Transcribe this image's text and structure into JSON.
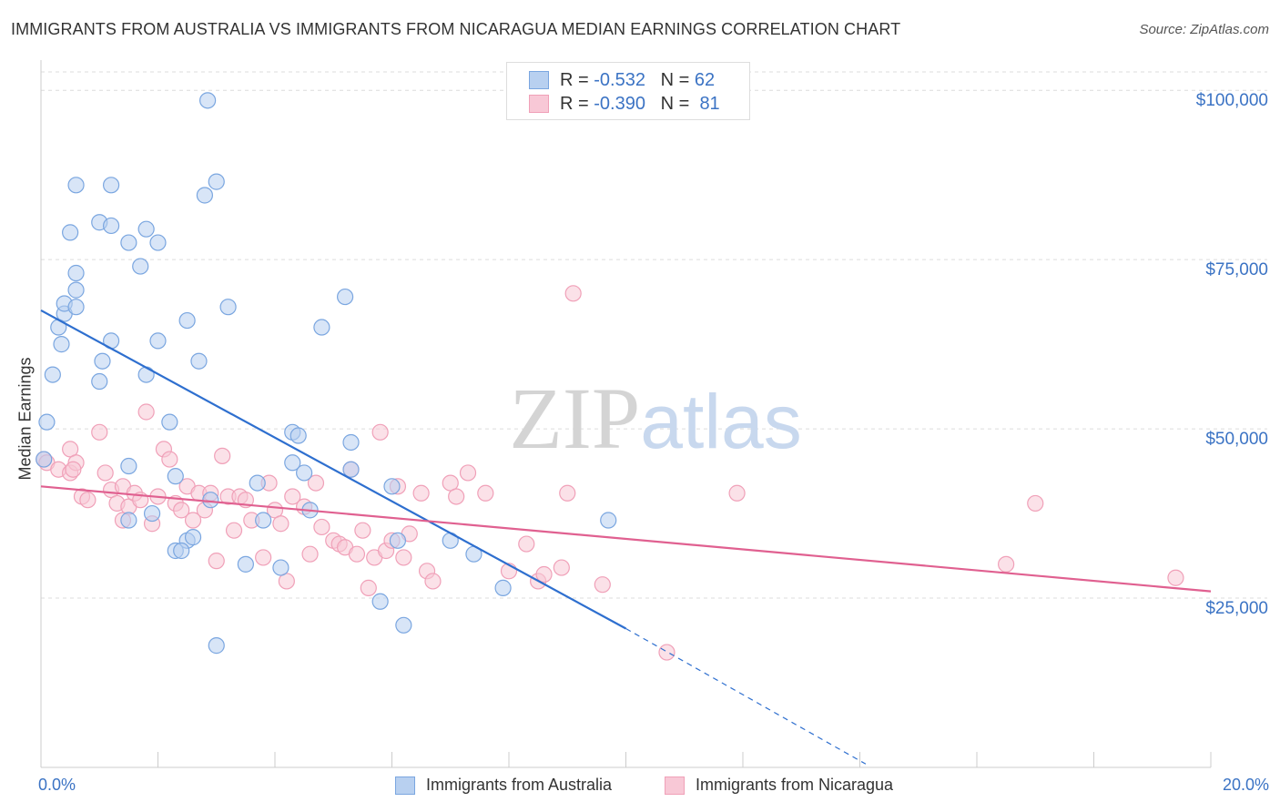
{
  "chart_data": {
    "type": "scatter",
    "title": "IMMIGRANTS FROM AUSTRALIA VS IMMIGRANTS FROM NICARAGUA MEDIAN EARNINGS CORRELATION CHART",
    "source": "Source: ZipAtlas.com",
    "watermark": "ZIPatlas",
    "ylabel": "Median Earnings",
    "xlim": [
      0,
      20
    ],
    "ylim": [
      0,
      105000
    ],
    "x_tick_labels": [
      "0.0%",
      "20.0%"
    ],
    "y_ticks": [
      {
        "value": 25000,
        "label": "$25,000"
      },
      {
        "value": 50000,
        "label": "$50,000"
      },
      {
        "value": 75000,
        "label": "$75,000"
      },
      {
        "value": 100000,
        "label": "$100,000"
      }
    ],
    "grid": "horizontal-dashed",
    "legend_position": "top-center",
    "series": [
      {
        "name": "Immigrants from Australia",
        "color": "#7aa6e0",
        "fill": "#b8d0f0",
        "line_color": "#2e6fcf",
        "R": "-0.532",
        "N": "62",
        "trend": {
          "x1": 0,
          "y1": 67500,
          "x2": 10,
          "y2": 20500,
          "dash_to_x": 14.1,
          "dash_to_y": 500
        },
        "points": [
          [
            0.05,
            45500
          ],
          [
            0.1,
            51000
          ],
          [
            0.2,
            58000
          ],
          [
            0.3,
            65000
          ],
          [
            0.35,
            62500
          ],
          [
            0.4,
            67000
          ],
          [
            0.4,
            68500
          ],
          [
            0.5,
            79000
          ],
          [
            0.6,
            73000
          ],
          [
            0.6,
            86000
          ],
          [
            0.6,
            70500
          ],
          [
            0.6,
            68000
          ],
          [
            1.0,
            80500
          ],
          [
            1.2,
            80000
          ],
          [
            1.2,
            86000
          ],
          [
            1.5,
            77500
          ],
          [
            1.7,
            74000
          ],
          [
            1.8,
            79500
          ],
          [
            2.0,
            77500
          ],
          [
            2.0,
            63000
          ],
          [
            1.05,
            60000
          ],
          [
            1.0,
            57000
          ],
          [
            1.8,
            58000
          ],
          [
            2.2,
            51000
          ],
          [
            1.5,
            44500
          ],
          [
            2.3,
            43000
          ],
          [
            1.9,
            37500
          ],
          [
            1.5,
            36500
          ],
          [
            2.5,
            66000
          ],
          [
            2.7,
            60000
          ],
          [
            2.8,
            84500
          ],
          [
            2.85,
            98500
          ],
          [
            3.0,
            86500
          ],
          [
            3.2,
            68000
          ],
          [
            2.9,
            39500
          ],
          [
            2.5,
            33500
          ],
          [
            2.3,
            32000
          ],
          [
            2.6,
            34000
          ],
          [
            3.0,
            18000
          ],
          [
            3.5,
            30000
          ],
          [
            3.7,
            42000
          ],
          [
            3.8,
            36500
          ],
          [
            4.1,
            29500
          ],
          [
            4.3,
            49500
          ],
          [
            4.4,
            49000
          ],
          [
            4.3,
            45000
          ],
          [
            4.5,
            43500
          ],
          [
            4.6,
            38000
          ],
          [
            4.8,
            65000
          ],
          [
            5.2,
            69500
          ],
          [
            5.3,
            48000
          ],
          [
            5.3,
            44000
          ],
          [
            5.8,
            24500
          ],
          [
            6.0,
            41500
          ],
          [
            6.1,
            33500
          ],
          [
            6.2,
            21000
          ],
          [
            7.0,
            33500
          ],
          [
            7.4,
            31500
          ],
          [
            7.9,
            26500
          ],
          [
            9.7,
            36500
          ],
          [
            1.2,
            63000
          ],
          [
            2.4,
            32000
          ]
        ]
      },
      {
        "name": "Immigrants from Nicaragua",
        "color": "#f0a0b8",
        "fill": "#f8c8d6",
        "line_color": "#e06090",
        "R": "-0.390",
        "N": "81",
        "trend": {
          "x1": 0,
          "y1": 41500,
          "x2": 20,
          "y2": 26000
        },
        "points": [
          [
            0.05,
            45500
          ],
          [
            0.1,
            45000
          ],
          [
            0.3,
            44000
          ],
          [
            0.5,
            43500
          ],
          [
            0.5,
            47000
          ],
          [
            0.6,
            45000
          ],
          [
            0.7,
            40000
          ],
          [
            0.8,
            39500
          ],
          [
            1.0,
            49500
          ],
          [
            1.1,
            43500
          ],
          [
            1.2,
            41000
          ],
          [
            1.3,
            39000
          ],
          [
            1.4,
            41500
          ],
          [
            1.4,
            36500
          ],
          [
            1.5,
            38500
          ],
          [
            1.6,
            40500
          ],
          [
            1.7,
            39500
          ],
          [
            1.8,
            52500
          ],
          [
            1.9,
            36000
          ],
          [
            2.0,
            40000
          ],
          [
            2.1,
            47000
          ],
          [
            2.2,
            45500
          ],
          [
            2.3,
            39000
          ],
          [
            2.4,
            38000
          ],
          [
            2.5,
            41500
          ],
          [
            2.6,
            36500
          ],
          [
            2.7,
            40500
          ],
          [
            2.8,
            38000
          ],
          [
            2.9,
            40500
          ],
          [
            3.0,
            30500
          ],
          [
            3.1,
            46000
          ],
          [
            3.2,
            40000
          ],
          [
            3.3,
            35000
          ],
          [
            3.4,
            40000
          ],
          [
            3.5,
            39500
          ],
          [
            3.6,
            36500
          ],
          [
            3.8,
            31000
          ],
          [
            3.9,
            42000
          ],
          [
            4.0,
            38000
          ],
          [
            4.1,
            36000
          ],
          [
            4.2,
            27500
          ],
          [
            4.3,
            40000
          ],
          [
            4.5,
            38500
          ],
          [
            4.6,
            31500
          ],
          [
            4.7,
            42000
          ],
          [
            4.8,
            35500
          ],
          [
            5.0,
            33500
          ],
          [
            5.1,
            33000
          ],
          [
            5.2,
            32500
          ],
          [
            5.3,
            44000
          ],
          [
            5.4,
            31500
          ],
          [
            5.5,
            35000
          ],
          [
            5.6,
            26500
          ],
          [
            5.7,
            31000
          ],
          [
            5.8,
            49500
          ],
          [
            5.9,
            32000
          ],
          [
            6.0,
            33500
          ],
          [
            6.1,
            41500
          ],
          [
            6.2,
            31000
          ],
          [
            6.3,
            34500
          ],
          [
            6.5,
            40500
          ],
          [
            6.6,
            29000
          ],
          [
            6.7,
            27500
          ],
          [
            7.0,
            42000
          ],
          [
            7.1,
            40000
          ],
          [
            7.3,
            43500
          ],
          [
            7.6,
            40500
          ],
          [
            8.0,
            29000
          ],
          [
            8.3,
            33000
          ],
          [
            8.5,
            27500
          ],
          [
            8.6,
            28500
          ],
          [
            8.9,
            29500
          ],
          [
            9.0,
            40500
          ],
          [
            9.1,
            70000
          ],
          [
            9.6,
            27000
          ],
          [
            10.7,
            17000
          ],
          [
            11.9,
            40500
          ],
          [
            16.5,
            30000
          ],
          [
            17.0,
            39000
          ],
          [
            19.4,
            28000
          ],
          [
            0.55,
            44000
          ]
        ]
      }
    ]
  }
}
